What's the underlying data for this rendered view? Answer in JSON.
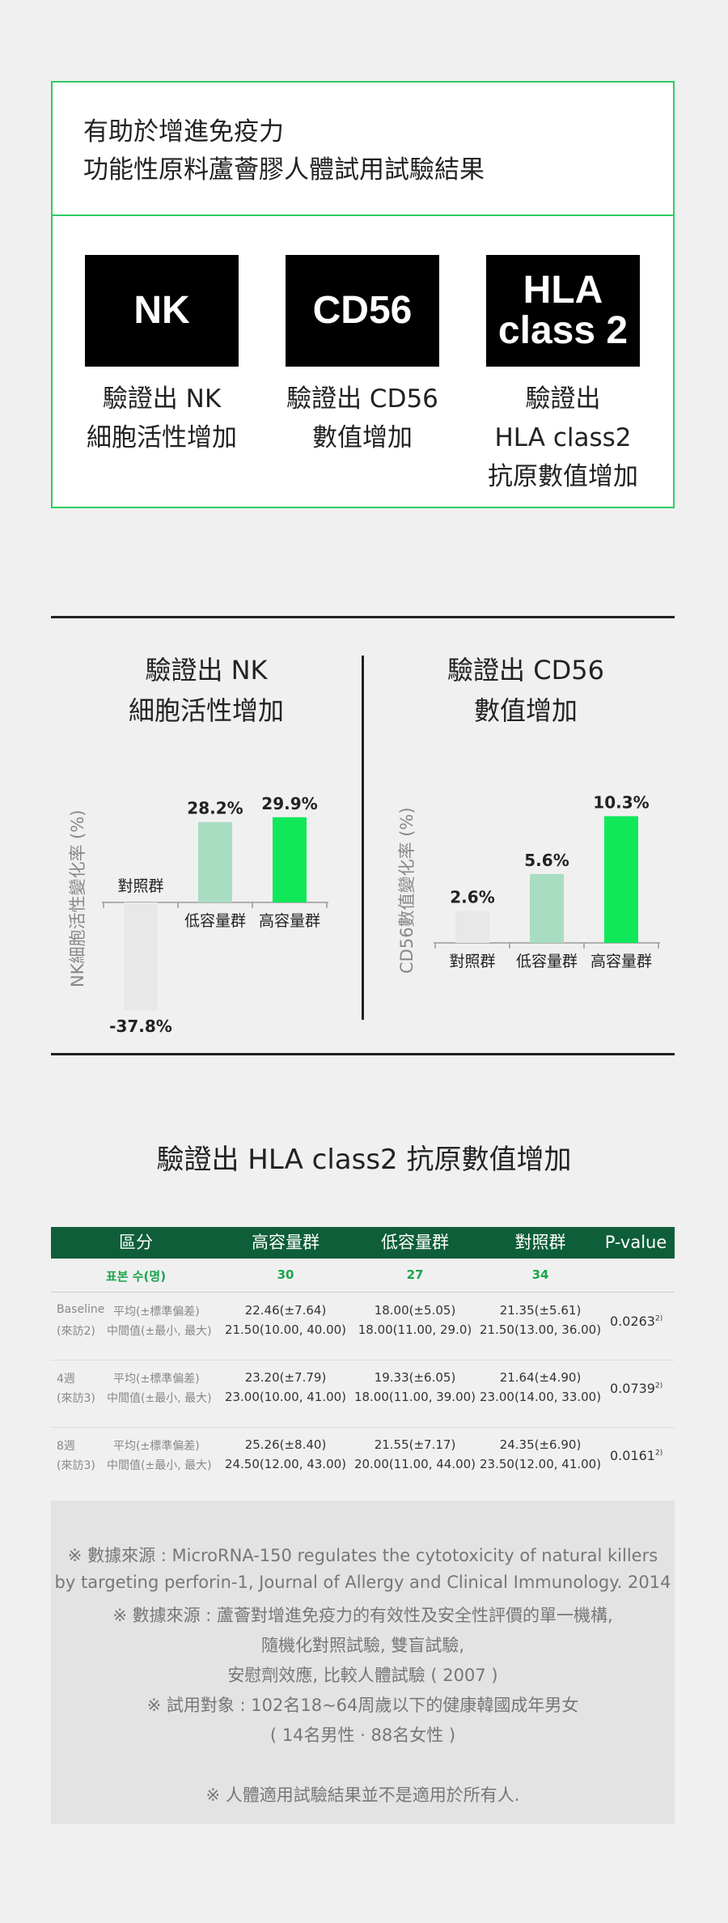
{
  "intro": {
    "line1": "有助於增進免疫力",
    "line2": "功能性原料蘆薈膠人體試用試驗結果"
  },
  "markers": [
    {
      "label": "NK",
      "desc1": "驗證出 NK",
      "desc2": "細胞活性增加",
      "desc3": ""
    },
    {
      "label": "CD56",
      "desc1": "驗證出 CD56",
      "desc2": "數值增加",
      "desc3": ""
    },
    {
      "label1": "HLA",
      "label2": "class 2",
      "desc1": "驗證出",
      "desc2": "HLA class2",
      "desc3": "抗原數值增加"
    }
  ],
  "chart_data": [
    {
      "type": "bar",
      "title": "驗證出 NK 細胞活性增加",
      "title_lines": [
        "驗證出 NK",
        "細胞活性增加"
      ],
      "ylabel": "NK細胞活性變化率 (%)",
      "categories": [
        "對照群",
        "低容量群",
        "高容量群"
      ],
      "values": [
        -37.8,
        28.2,
        29.9
      ],
      "value_labels": [
        "-37.8%",
        "28.2%",
        "29.9%"
      ],
      "colors": [
        "#e8e8e8",
        "#a9ddc1",
        "#10e85a"
      ],
      "grid": false
    },
    {
      "type": "bar",
      "title": "驗證出 CD56 數值增加",
      "title_lines": [
        "驗證出 CD56",
        "數值增加"
      ],
      "ylabel": "CD56數值變化率 (%)",
      "categories": [
        "對照群",
        "低容量群",
        "高容量群"
      ],
      "values": [
        2.6,
        5.6,
        10.3
      ],
      "value_labels": [
        "2.6%",
        "5.6%",
        "10.3%"
      ],
      "colors": [
        "#e8e8e8",
        "#a9ddc1",
        "#10e85a"
      ],
      "grid": false
    },
    {
      "type": "table",
      "title": "驗證出 HLA class2 抗原數值增加",
      "headers": [
        "區分",
        "高容量群",
        "低容量群",
        "對照群",
        "P-value"
      ],
      "n_row": {
        "label": "표본 수(명)",
        "values": [
          "30",
          "27",
          "34"
        ]
      },
      "rows": [
        {
          "visit1": "Baseline",
          "visit2": "(來訪2)",
          "stat1": "平均(±標準偏差)",
          "stat2": "中間值(±最小, 最大)",
          "high": [
            "22.46(±7.64)",
            "21.50(10.00, 40.00)"
          ],
          "low": [
            "18.00(±5.05)",
            "18.00(11.00, 29.0)"
          ],
          "control": [
            "21.35(±5.61)",
            "21.50(13.00, 36.00)"
          ],
          "p": "0.0263",
          "p_note": "2)"
        },
        {
          "visit1": "4週",
          "visit2": "(來訪3)",
          "stat1": "平均(±標準偏差)",
          "stat2": "中間值(±最小, 最大)",
          "high": [
            "23.20(±7.79)",
            "23.00(10.00, 41.00)"
          ],
          "low": [
            "19.33(±6.05)",
            "18.00(11.00, 39.00)"
          ],
          "control": [
            "21.64(±4.90)",
            "23.00(14.00, 33.00)"
          ],
          "p": "0.0739",
          "p_note": "2)"
        },
        {
          "visit1": "8週",
          "visit2": "(來訪3)",
          "stat1": "平均(±標準偏差)",
          "stat2": "中間值(±最小, 最大)",
          "high": [
            "25.26(±8.40)",
            "24.50(12.00, 43.00)"
          ],
          "low": [
            "21.55(±7.17)",
            "20.00(11.00, 44.00)"
          ],
          "control": [
            "24.35(±6.90)",
            "23.50(12.00, 41.00)"
          ],
          "p": "0.0161",
          "p_note": "2)"
        }
      ]
    }
  ],
  "notes": [
    "※ 數據來源 : MicroRNA-150 regulates the cytotoxicity of natural killers",
    "by targeting perforin-1, Journal of Allergy and Clinical Immunology. 2014",
    "※ 數據來源 : 蘆薈對增進免疫力的有效性及安全性評價的單一機構,",
    "隨機化對照試驗, 雙盲試驗,",
    "安慰劑效應, 比較人體試驗 ( 2007 )",
    "※ 試用對象 : 102名18~64周歲以下的健康韓國成年男女",
    "( 14名男性 · 88名女性 )",
    "※ 人體適用試驗結果並不是適用於所有人."
  ]
}
